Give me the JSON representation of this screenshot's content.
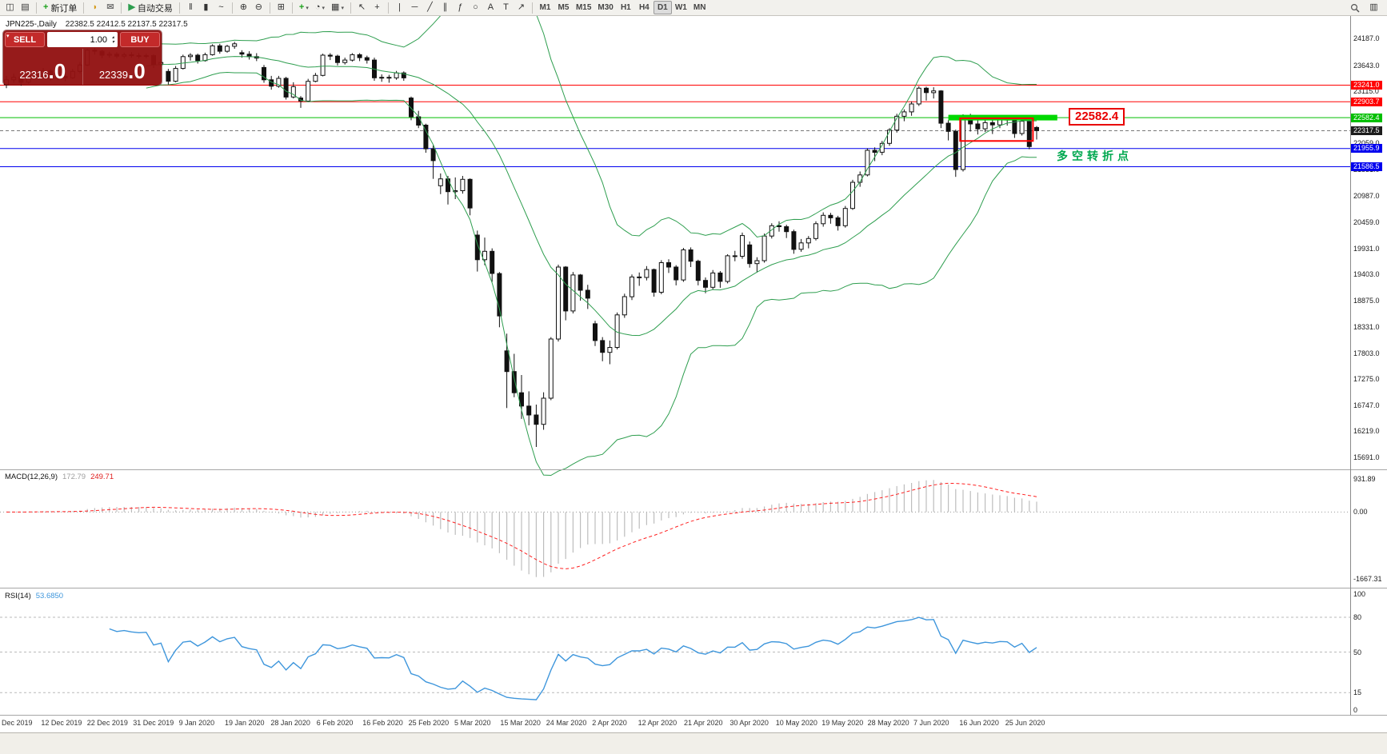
{
  "icons": {
    "caret": "▾",
    "spin_up": "▴",
    "spin_down": "▾",
    "collapse": "▾"
  },
  "toolbar": {
    "groups": [
      {
        "buttons": [
          {
            "name": "new-chart",
            "glyph": "◫"
          },
          {
            "name": "profiles",
            "glyph": "▤"
          }
        ]
      },
      {
        "buttons": [
          {
            "name": "new-order",
            "glyph": "+",
            "glyph_color": "#1ba11b",
            "label": "新订单"
          }
        ]
      },
      {
        "buttons": [
          {
            "name": "alerts-horn",
            "glyph": "◗",
            "glyph_color": "#d49a1a"
          },
          {
            "name": "mailbox",
            "glyph": "✉",
            "glyph_color": "#777777"
          }
        ]
      },
      {
        "buttons": [
          {
            "name": "autotrading",
            "glyph": "▶",
            "glyph_color": "#2e9e4f",
            "label": "自动交易"
          }
        ]
      },
      {
        "buttons": [
          {
            "name": "chart-bars",
            "glyph": "‖"
          },
          {
            "name": "chart-candles",
            "glyph": "▮"
          },
          {
            "name": "chart-line",
            "glyph": "~"
          }
        ]
      },
      {
        "buttons": [
          {
            "name": "zoom-in",
            "glyph": "⊕"
          },
          {
            "name": "zoom-out",
            "glyph": "⊖"
          }
        ]
      },
      {
        "buttons": [
          {
            "name": "tile-windows",
            "glyph": "⊞"
          }
        ]
      },
      {
        "buttons": [
          {
            "name": "indicators",
            "glyph": "+",
            "glyph_color": "#1ba11b",
            "caret": true
          },
          {
            "name": "periods",
            "glyph": "◔",
            "caret": true
          },
          {
            "name": "templates",
            "glyph": "▦",
            "caret": true
          }
        ]
      },
      {
        "buttons": [
          {
            "name": "cursor",
            "glyph": "↖"
          },
          {
            "name": "crosshair",
            "glyph": "+"
          }
        ]
      },
      {
        "buttons": [
          {
            "name": "vertical-line",
            "glyph": "|"
          },
          {
            "name": "horizontal-line",
            "glyph": "─"
          },
          {
            "name": "trendline",
            "glyph": "╱"
          },
          {
            "name": "channel",
            "glyph": "∥"
          },
          {
            "name": "fibonacci",
            "glyph": "ƒ"
          },
          {
            "name": "shapes",
            "glyph": "○"
          },
          {
            "name": "text",
            "glyph": "A"
          },
          {
            "name": "text-label",
            "glyph": "T"
          },
          {
            "name": "arrows",
            "glyph": "↗"
          }
        ]
      }
    ],
    "timeframes": [
      "M1",
      "M5",
      "M15",
      "M30",
      "H1",
      "H4",
      "D1",
      "W1",
      "MN"
    ],
    "active_timeframe": "D1",
    "right_buttons": [
      {
        "name": "search",
        "glyph": ""
      },
      {
        "name": "objects-list",
        "glyph": "▥"
      }
    ]
  },
  "chart_header": {
    "symbol": "JPN225-,Daily",
    "ohlc": "22382.5 22412.5 22137.5 22317.5"
  },
  "trade_panel": {
    "sell_label": "SELL",
    "buy_label": "BUY",
    "volume": "1.00",
    "sell_price_main": "22316",
    "sell_price_big": ".0",
    "buy_price_main": "22339",
    "buy_price_big": ".0"
  },
  "macd_header": {
    "name": "MACD(12,26,9)",
    "value": "172.79",
    "signal": "249.71"
  },
  "rsi_header": {
    "name": "RSI(14)",
    "value": "53.6850"
  },
  "annotations": {
    "level_callout": "22582.4",
    "pivot_text": "多空转折点",
    "green_bar": {
      "price": 22582.4,
      "from_bar": 128,
      "to_bar": 142.8,
      "thickness": 7,
      "color": "#00d800"
    },
    "red_rect": {
      "from_bar": 129.6,
      "to_bar": 139.5,
      "price_top": 22570,
      "price_bottom": 22110,
      "color": "#ff0000"
    }
  },
  "chart_data": {
    "type": "candlestick",
    "symbol": "JPN225",
    "timeframe": "Daily",
    "ylim": [
      15560,
      24450
    ],
    "grid": false,
    "price_axis_ticks": [
      24187.0,
      23643.0,
      23115.0,
      22587.0,
      22059.0,
      21531.0,
      20987.0,
      20459.0,
      19931.0,
      19403.0,
      18875.0,
      18331.0,
      17803.0,
      17275.0,
      16747.0,
      16219.0,
      15691.0
    ],
    "date_labels": [
      "Dec 2019",
      "12 Dec 2019",
      "22 Dec 2019",
      "31 Dec 2019",
      "9 Jan 2020",
      "19 Jan 2020",
      "28 Jan 2020",
      "6 Feb 2020",
      "16 Feb 2020",
      "25 Feb 2020",
      "5 Mar 2020",
      "15 Mar 2020",
      "24 Mar 2020",
      "2 Apr 2020",
      "12 Apr 2020",
      "21 Apr 2020",
      "30 Apr 2020",
      "10 May 2020",
      "19 May 2020",
      "28 May 2020",
      "7 Jun 2020",
      "16 Jun 2020",
      "25 Jun 2020"
    ],
    "levels": [
      {
        "price": 23241.0,
        "label": "23241.0",
        "color": "#ff0000"
      },
      {
        "price": 22903.7,
        "label": "22903.7",
        "color": "#ff0000"
      },
      {
        "price": 22582.4,
        "label": "22582.4",
        "color": "#00bf00"
      },
      {
        "price": 21955.9,
        "label": "21955.9",
        "color": "#0000ee"
      },
      {
        "price": 21586.5,
        "label": "21586.5",
        "color": "#0000ee"
      }
    ],
    "current_price": {
      "value": 22317.5,
      "label": "22317.5",
      "color": "#1c1c1c"
    },
    "indicators": {
      "bollinger": {
        "period": 20,
        "deviation": 2,
        "color": "#2e9e4f"
      },
      "macd": {
        "fast": 12,
        "slow": 26,
        "signal": 9,
        "axis_labels": [
          "931.89",
          "0.00",
          "-1667.31"
        ],
        "hist_color": "#bdbdbd",
        "signal_color": "#ff2020"
      },
      "rsi": {
        "period": 14,
        "levels": [
          100,
          80,
          50,
          15,
          0
        ],
        "dashed_levels": [
          80,
          50,
          15
        ],
        "color": "#3e96dc"
      }
    },
    "candles": [
      [
        23250,
        23430,
        23180,
        23350
      ],
      [
        23350,
        23470,
        23290,
        23400
      ],
      [
        23400,
        23450,
        23230,
        23300
      ],
      [
        23300,
        23500,
        23270,
        23450
      ],
      [
        23450,
        23520,
        23360,
        23430
      ],
      [
        23430,
        23590,
        23400,
        23530
      ],
      [
        23530,
        23560,
        23330,
        23390
      ],
      [
        23390,
        23490,
        23340,
        23420
      ],
      [
        23420,
        23470,
        23320,
        23390
      ],
      [
        23390,
        23570,
        23370,
        23520
      ],
      [
        23520,
        23710,
        23480,
        23650
      ],
      [
        23650,
        23980,
        23630,
        23950
      ],
      [
        23950,
        24000,
        23860,
        23930
      ],
      [
        23930,
        23960,
        23790,
        23850
      ],
      [
        23850,
        23920,
        23800,
        23870
      ],
      [
        23870,
        23910,
        23780,
        23830
      ],
      [
        23830,
        23900,
        23790,
        23860
      ],
      [
        23860,
        23910,
        23800,
        23840
      ],
      [
        23840,
        23890,
        23780,
        23830
      ],
      [
        23830,
        23880,
        23790,
        23840
      ],
      [
        23840,
        23870,
        23590,
        23660
      ],
      [
        23660,
        23760,
        23610,
        23700
      ],
      [
        23520,
        23570,
        23250,
        23320
      ],
      [
        23320,
        23630,
        23300,
        23580
      ],
      [
        23580,
        23860,
        23560,
        23820
      ],
      [
        23820,
        23890,
        23740,
        23850
      ],
      [
        23850,
        23880,
        23680,
        23740
      ],
      [
        23740,
        23900,
        23720,
        23860
      ],
      [
        23860,
        24070,
        23840,
        24040
      ],
      [
        24040,
        24080,
        23880,
        23930
      ],
      [
        23930,
        24060,
        23900,
        24030
      ],
      [
        24030,
        24120,
        23980,
        24080
      ],
      [
        23900,
        23950,
        23800,
        23870
      ],
      [
        23870,
        23930,
        23760,
        23820
      ],
      [
        23820,
        23890,
        23730,
        23790
      ],
      [
        23600,
        23650,
        23290,
        23350
      ],
      [
        23350,
        23430,
        23150,
        23220
      ],
      [
        23220,
        23430,
        23190,
        23380
      ],
      [
        23380,
        23410,
        22950,
        23000
      ],
      [
        23000,
        23300,
        22970,
        23210
      ],
      [
        22980,
        23020,
        22780,
        22920
      ],
      [
        22920,
        23370,
        22900,
        23320
      ],
      [
        23320,
        23490,
        23300,
        23440
      ],
      [
        23440,
        23880,
        23420,
        23850
      ],
      [
        23850,
        23890,
        23750,
        23830
      ],
      [
        23830,
        23860,
        23640,
        23700
      ],
      [
        23700,
        23800,
        23660,
        23750
      ],
      [
        23750,
        23890,
        23720,
        23860
      ],
      [
        23860,
        23890,
        23730,
        23800
      ],
      [
        23800,
        23840,
        23680,
        23750
      ],
      [
        23750,
        23800,
        23330,
        23390
      ],
      [
        23390,
        23460,
        23310,
        23400
      ],
      [
        23400,
        23450,
        23290,
        23390
      ],
      [
        23390,
        23530,
        23350,
        23490
      ],
      [
        23490,
        23520,
        23330,
        23390
      ],
      [
        22980,
        23010,
        22530,
        22600
      ],
      [
        22600,
        22720,
        22370,
        22430
      ],
      [
        22430,
        22460,
        21870,
        21950
      ],
      [
        21950,
        22020,
        21340,
        21710
      ],
      [
        21200,
        21450,
        21030,
        21340
      ],
      [
        21340,
        21400,
        20820,
        21080
      ],
      [
        21080,
        21370,
        20930,
        21100
      ],
      [
        21100,
        21400,
        21040,
        21330
      ],
      [
        21330,
        21350,
        20600,
        20750
      ],
      [
        20200,
        20290,
        19460,
        19700
      ],
      [
        19700,
        20150,
        19590,
        19870
      ],
      [
        19870,
        19930,
        19250,
        19420
      ],
      [
        19420,
        19450,
        18330,
        18560
      ],
      [
        17850,
        18200,
        16690,
        17430
      ],
      [
        17430,
        17790,
        16910,
        17000
      ],
      [
        17000,
        17360,
        16470,
        16730
      ],
      [
        16730,
        17030,
        16340,
        16550
      ],
      [
        16550,
        16760,
        15900,
        16360
      ],
      [
        16360,
        17010,
        16250,
        16890
      ],
      [
        16890,
        18130,
        16850,
        18090
      ],
      [
        18090,
        19600,
        18040,
        19550
      ],
      [
        19550,
        19570,
        18470,
        18660
      ],
      [
        18660,
        19450,
        18610,
        19390
      ],
      [
        19390,
        19410,
        18870,
        19080
      ],
      [
        19080,
        19190,
        18700,
        18920
      ],
      [
        18400,
        18460,
        17950,
        18060
      ],
      [
        18060,
        18130,
        17640,
        17820
      ],
      [
        17820,
        18060,
        17580,
        17920
      ],
      [
        17920,
        18630,
        17880,
        18580
      ],
      [
        18580,
        19010,
        18520,
        18950
      ],
      [
        18950,
        19400,
        18880,
        19350
      ],
      [
        19350,
        19440,
        19170,
        19340
      ],
      [
        19340,
        19570,
        19280,
        19500
      ],
      [
        19500,
        19520,
        18950,
        19040
      ],
      [
        19040,
        19690,
        19000,
        19640
      ],
      [
        19640,
        19710,
        19430,
        19550
      ],
      [
        19550,
        19590,
        19180,
        19290
      ],
      [
        19290,
        19940,
        19250,
        19900
      ],
      [
        19900,
        19950,
        19550,
        19670
      ],
      [
        19670,
        19700,
        19180,
        19280
      ],
      [
        19280,
        19340,
        19020,
        19140
      ],
      [
        19140,
        19490,
        19090,
        19430
      ],
      [
        19430,
        19470,
        19130,
        19260
      ],
      [
        19260,
        19810,
        19220,
        19780
      ],
      [
        19780,
        19880,
        19670,
        19770
      ],
      [
        19770,
        20250,
        19720,
        20190
      ],
      [
        20000,
        20070,
        19540,
        19620
      ],
      [
        19620,
        19750,
        19440,
        19680
      ],
      [
        19680,
        20230,
        19640,
        20180
      ],
      [
        20180,
        20440,
        20130,
        20390
      ],
      [
        20390,
        20480,
        20270,
        20370
      ],
      [
        20370,
        20410,
        20140,
        20270
      ],
      [
        20270,
        20310,
        19820,
        19910
      ],
      [
        19910,
        20120,
        19860,
        20040
      ],
      [
        20040,
        20180,
        19930,
        20130
      ],
      [
        20130,
        20480,
        20090,
        20430
      ],
      [
        20430,
        20660,
        20370,
        20600
      ],
      [
        20600,
        20650,
        20430,
        20550
      ],
      [
        20550,
        20590,
        20290,
        20390
      ],
      [
        20390,
        20790,
        20350,
        20740
      ],
      [
        20740,
        21320,
        20710,
        21270
      ],
      [
        21270,
        21490,
        21180,
        21420
      ],
      [
        21420,
        21960,
        21390,
        21920
      ],
      [
        21920,
        21980,
        21700,
        21880
      ],
      [
        21880,
        22110,
        21820,
        22060
      ],
      [
        22060,
        22370,
        22010,
        22330
      ],
      [
        22330,
        22660,
        22280,
        22610
      ],
      [
        22610,
        22750,
        22510,
        22700
      ],
      [
        22700,
        22910,
        22620,
        22860
      ],
      [
        22860,
        23220,
        22820,
        23180
      ],
      [
        23180,
        23210,
        22930,
        23090
      ],
      [
        23090,
        23200,
        22970,
        23125
      ],
      [
        23125,
        23140,
        22370,
        22470
      ],
      [
        22470,
        22530,
        22120,
        22305
      ],
      [
        22305,
        22340,
        21380,
        21530
      ],
      [
        21530,
        22650,
        21490,
        22580
      ],
      [
        22580,
        22660,
        22300,
        22455
      ],
      [
        22455,
        22540,
        22240,
        22355
      ],
      [
        22355,
        22570,
        22290,
        22480
      ],
      [
        22480,
        22530,
        22250,
        22435
      ],
      [
        22435,
        22610,
        22370,
        22550
      ],
      [
        22550,
        22630,
        22420,
        22535
      ],
      [
        22535,
        22550,
        22170,
        22260
      ],
      [
        22260,
        22590,
        22220,
        22510
      ],
      [
        22510,
        22530,
        21940,
        21995
      ],
      [
        22382.5,
        22412.5,
        22137.5,
        22317.5
      ]
    ]
  }
}
